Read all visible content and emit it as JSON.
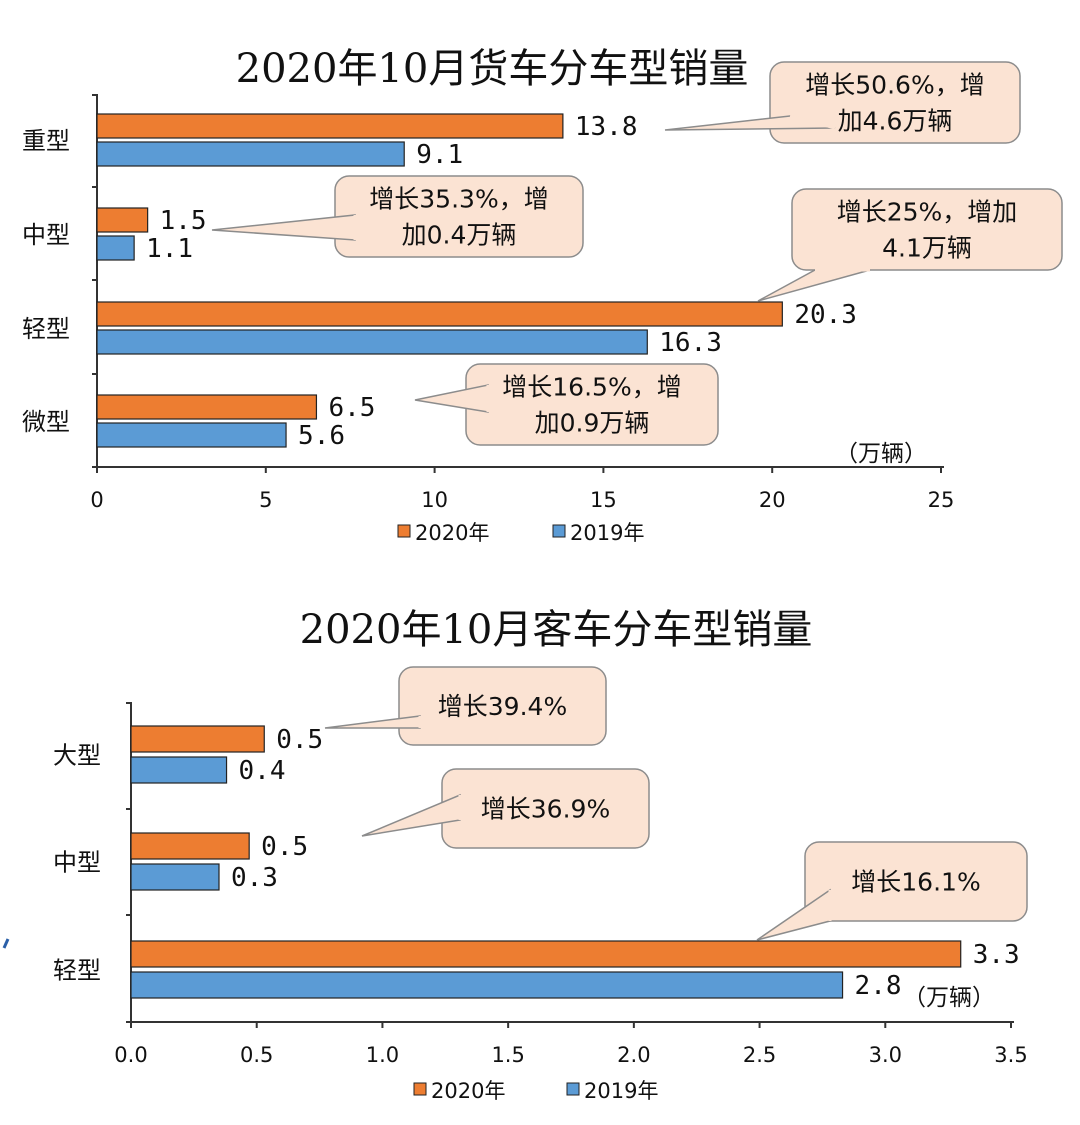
{
  "colors": {
    "y2020": "#ED7D31",
    "y2019": "#5B9BD5",
    "callout_fill": "#FBE3D3",
    "callout_stroke": "#8C8C8C"
  },
  "chart_data": [
    {
      "type": "bar",
      "orientation": "horizontal",
      "title": "2020年10月货车分车型销量",
      "categories": [
        "重型",
        "中型",
        "轻型",
        "微型"
      ],
      "series": [
        {
          "name": "2020年",
          "values": [
            13.8,
            1.5,
            20.3,
            6.5
          ],
          "labels": [
            "13.8",
            "1.5",
            "20.3",
            "6.5"
          ]
        },
        {
          "name": "2019年",
          "values": [
            9.1,
            1.1,
            16.3,
            5.6
          ],
          "labels": [
            "9.1",
            "1.1",
            "16.3",
            "5.6"
          ]
        }
      ],
      "xlim": [
        0,
        25
      ],
      "ticks": [
        "0",
        "5",
        "10",
        "15",
        "20",
        "25"
      ],
      "unit": "（万辆）",
      "legend": [
        "2020年",
        "2019年"
      ],
      "annotations": [
        {
          "lines": [
            "增长50.6%，增",
            "加4.6万辆"
          ]
        },
        {
          "lines": [
            "增长35.3%，增",
            "加0.4万辆"
          ]
        },
        {
          "lines": [
            "增长25%，增加",
            "4.1万辆"
          ]
        },
        {
          "lines": [
            "增长16.5%，增",
            "加0.9万辆"
          ]
        }
      ]
    },
    {
      "type": "bar",
      "orientation": "horizontal",
      "title": "2020年10月客车分车型销量",
      "categories": [
        "大型",
        "中型",
        "轻型"
      ],
      "series": [
        {
          "name": "2020年",
          "values": [
            0.53,
            0.47,
            3.3
          ],
          "labels": [
            "0.5",
            "0.5",
            "3.3"
          ]
        },
        {
          "name": "2019年",
          "values": [
            0.38,
            0.35,
            2.83
          ],
          "labels": [
            "0.4",
            "0.3",
            "2.8"
          ]
        }
      ],
      "xlim": [
        0,
        3.5
      ],
      "ticks": [
        "0.0",
        "0.5",
        "1.0",
        "1.5",
        "2.0",
        "2.5",
        "3.0",
        "3.5"
      ],
      "unit": "（万辆）",
      "legend": [
        "2020年",
        "2019年"
      ],
      "annotations": [
        {
          "lines": [
            "增长39.4%"
          ]
        },
        {
          "lines": [
            "增长36.9%"
          ]
        },
        {
          "lines": [
            "增长16.1%"
          ]
        }
      ]
    }
  ]
}
